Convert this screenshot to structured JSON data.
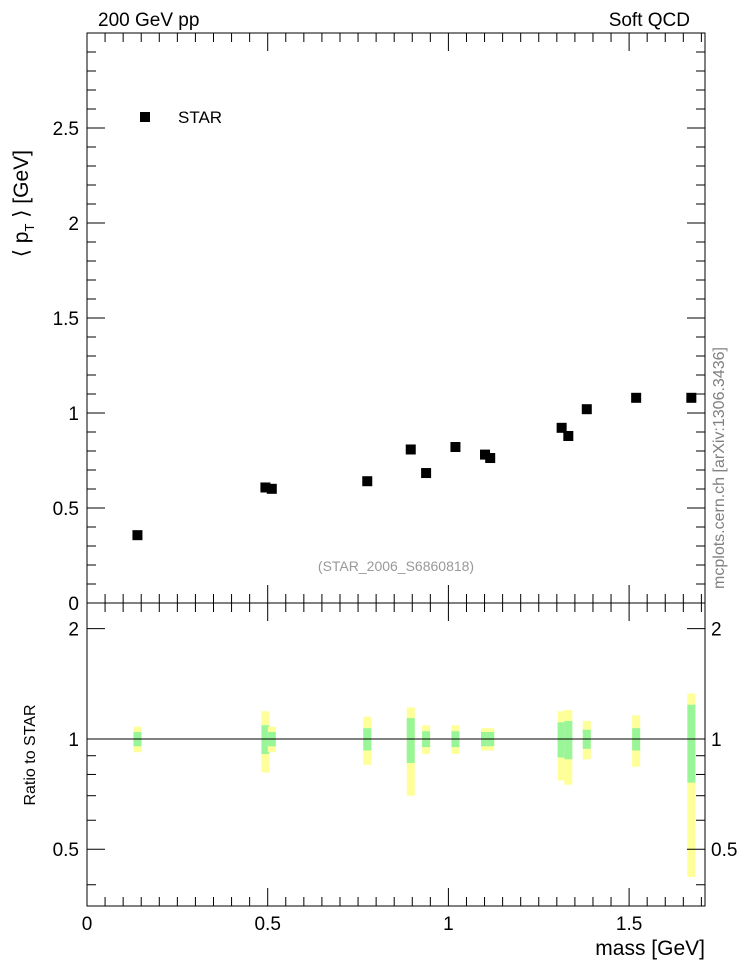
{
  "header": {
    "left": "200 GeV pp",
    "right": "Soft QCD"
  },
  "side_label": "mcplots.cern.ch [arXiv:1306.3436]",
  "chart_data": [
    {
      "type": "scatter",
      "title": "",
      "xlabel": "",
      "ylabel": "⟨ p_T ⟩ [GeV]",
      "ylabel_parts": {
        "open": "⟨ p",
        "sub": "T",
        "close": " ⟩ [GeV]"
      },
      "xlim": [
        0,
        1.71
      ],
      "ylim": [
        0,
        3.0
      ],
      "y_ticks": [
        0,
        0.5,
        1,
        1.5,
        2,
        2.5
      ],
      "y_tick_labels": [
        "0",
        "0.5",
        "1",
        "1.5",
        "2",
        "2.5"
      ],
      "legend": {
        "placement": "top-left",
        "entries": [
          "STAR"
        ]
      },
      "annotation": "(STAR_2006_S6860818)",
      "series": [
        {
          "name": "STAR",
          "marker": "square",
          "color": "#000000",
          "x": [
            0.1396,
            0.4937,
            0.5113,
            0.7755,
            0.8958,
            0.9383,
            1.0195,
            1.1013,
            1.1157,
            1.3133,
            1.3318,
            1.3829,
            1.5195,
            1.6722
          ],
          "y": [
            0.357,
            0.608,
            0.601,
            0.641,
            0.808,
            0.684,
            0.821,
            0.781,
            0.763,
            0.922,
            0.879,
            1.02,
            1.08,
            1.08
          ]
        }
      ]
    },
    {
      "type": "ratio",
      "xlabel": "mass [GeV]",
      "ylabel": "Ratio to STAR",
      "xlim": [
        0,
        1.71
      ],
      "ylim": [
        0.35,
        2.35
      ],
      "y_scale": "log",
      "x_ticks": [
        0,
        0.5,
        1,
        1.5
      ],
      "x_tick_labels": [
        "0",
        "0.5",
        "1",
        "1.5"
      ],
      "y_ticks": [
        0.5,
        1,
        2
      ],
      "y_tick_labels": [
        "0.5",
        "1",
        "2"
      ],
      "reference_line": 1,
      "band_colors": {
        "inner": "#98f598",
        "outer": "#ffff99"
      },
      "bands": [
        {
          "x": 0.1396,
          "inner": [
            0.955,
            1.045
          ],
          "outer": [
            0.92,
            1.08
          ]
        },
        {
          "x": 0.4937,
          "inner": [
            0.91,
            1.09
          ],
          "outer": [
            0.81,
            1.19
          ]
        },
        {
          "x": 0.5113,
          "inner": [
            0.955,
            1.045
          ],
          "outer": [
            0.92,
            1.08
          ]
        },
        {
          "x": 0.7755,
          "inner": [
            0.93,
            1.07
          ],
          "outer": [
            0.85,
            1.15
          ]
        },
        {
          "x": 0.8958,
          "inner": [
            0.86,
            1.14
          ],
          "outer": [
            0.7,
            1.22
          ]
        },
        {
          "x": 0.9383,
          "inner": [
            0.95,
            1.05
          ],
          "outer": [
            0.91,
            1.09
          ]
        },
        {
          "x": 1.0195,
          "inner": [
            0.95,
            1.05
          ],
          "outer": [
            0.91,
            1.09
          ]
        },
        {
          "x": 1.1013,
          "inner": [
            0.955,
            1.045
          ],
          "outer": [
            0.93,
            1.07
          ]
        },
        {
          "x": 1.1157,
          "inner": [
            0.955,
            1.045
          ],
          "outer": [
            0.93,
            1.07
          ]
        },
        {
          "x": 1.3133,
          "inner": [
            0.89,
            1.11
          ],
          "outer": [
            0.77,
            1.19
          ]
        },
        {
          "x": 1.3318,
          "inner": [
            0.88,
            1.12
          ],
          "outer": [
            0.75,
            1.2
          ]
        },
        {
          "x": 1.3829,
          "inner": [
            0.94,
            1.06
          ],
          "outer": [
            0.88,
            1.12
          ]
        },
        {
          "x": 1.5195,
          "inner": [
            0.93,
            1.07
          ],
          "outer": [
            0.84,
            1.16
          ]
        },
        {
          "x": 1.6722,
          "inner": [
            0.76,
            1.24
          ],
          "outer": [
            0.42,
            1.33
          ]
        }
      ]
    }
  ]
}
